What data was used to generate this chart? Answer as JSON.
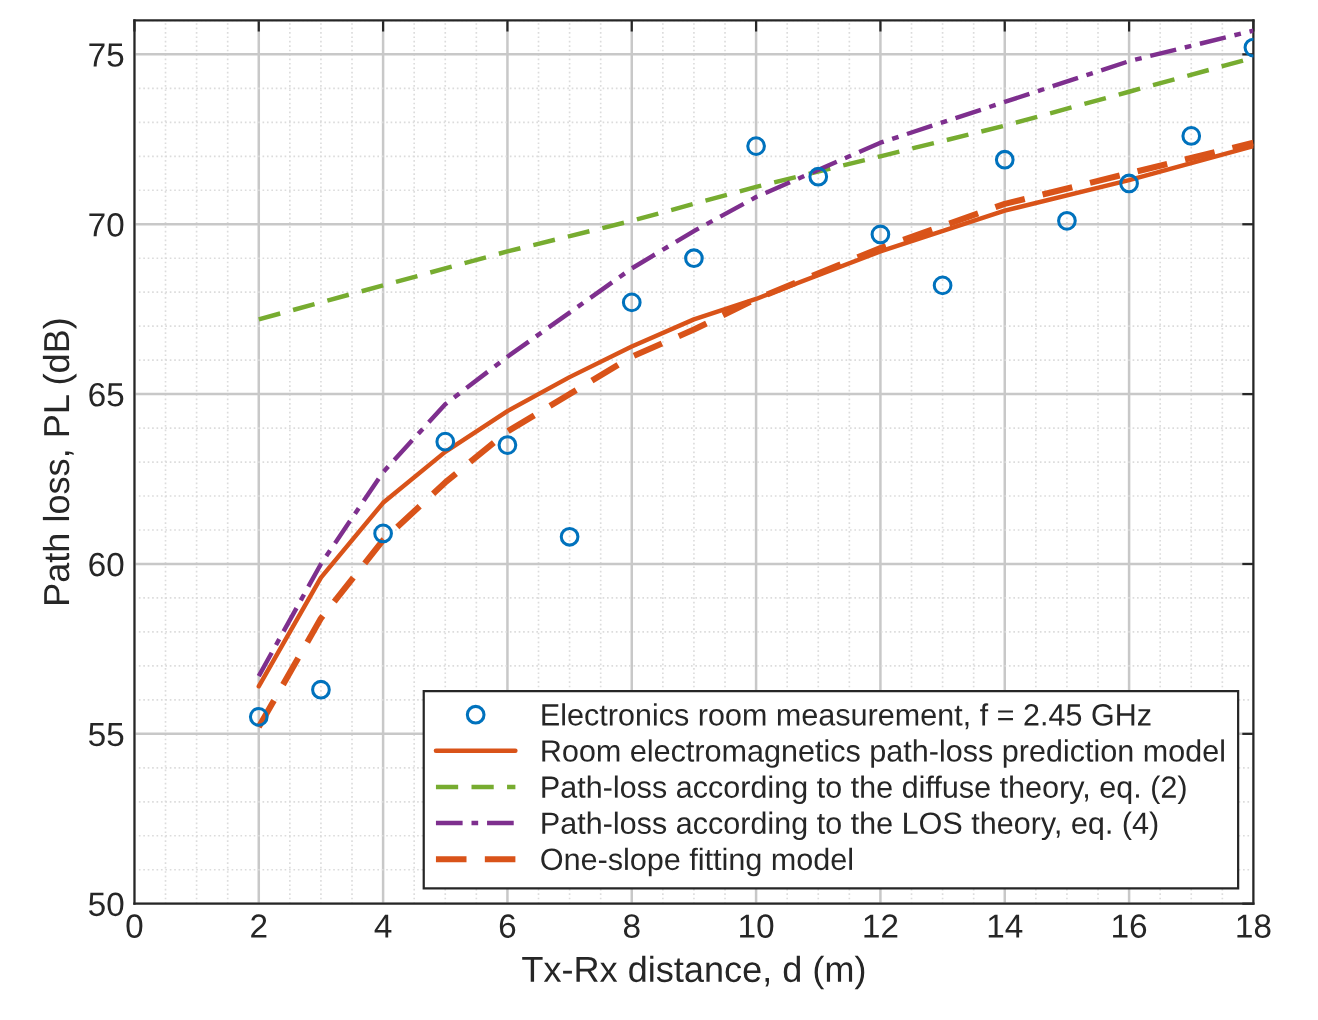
{
  "chart_data": {
    "type": "line",
    "xlabel": "Tx-Rx distance, d (m)",
    "ylabel": "Path loss, PL (dB)",
    "xlim": [
      0,
      18
    ],
    "xticks": [
      0,
      2,
      4,
      6,
      8,
      10,
      12,
      14,
      16,
      18
    ],
    "ylim": [
      50,
      76
    ],
    "yticks": [
      50,
      55,
      60,
      65,
      70,
      75
    ],
    "grid": true,
    "legend": "bottom right",
    "series": [
      {
        "name": "Electronics room measurement, f = 2.45 GHz",
        "type": "scatter",
        "marker": "circle",
        "color": "#0072bd",
        "x": [
          2,
          3,
          4,
          5,
          6,
          7,
          8,
          9,
          10,
          11,
          12,
          13,
          14,
          15,
          16,
          17,
          18
        ],
        "values": [
          55.5,
          56.3,
          60.9,
          63.6,
          63.5,
          60.8,
          67.7,
          69.0,
          72.3,
          71.4,
          69.7,
          68.2,
          71.9,
          70.1,
          71.2,
          72.6,
          75.2
        ]
      },
      {
        "name": "Room electromagnetics path-loss prediction model",
        "line_style": "solid",
        "color": "#d95319",
        "x": [
          2,
          3,
          4,
          5,
          6,
          7,
          8,
          9,
          10,
          12,
          14,
          16,
          18
        ],
        "values": [
          56.4,
          59.6,
          61.8,
          63.3,
          64.5,
          65.5,
          66.4,
          67.2,
          67.8,
          69.2,
          70.4,
          71.3,
          72.3
        ]
      },
      {
        "name": "Path-loss according to the diffuse theory, eq. (2)",
        "line_style": "dashed",
        "color": "#77ac30",
        "x": [
          2,
          4,
          6,
          8,
          10,
          12,
          14,
          16,
          18
        ],
        "values": [
          67.2,
          68.2,
          69.2,
          70.1,
          71.1,
          72.0,
          72.9,
          73.9,
          74.9
        ]
      },
      {
        "name": "Path-loss according to the LOS theory, eq. (4)",
        "line_style": "dashdot",
        "color": "#7e2f8e",
        "x": [
          2,
          3,
          4,
          5,
          6,
          7,
          8,
          9,
          10,
          12,
          14,
          16,
          18
        ],
        "values": [
          56.7,
          60.0,
          62.7,
          64.7,
          66.1,
          67.4,
          68.7,
          69.8,
          70.8,
          72.4,
          73.6,
          74.8,
          75.7
        ]
      },
      {
        "name": "One-slope fitting model",
        "line_style": "dashed",
        "color": "#d95319",
        "x": [
          2,
          3,
          4,
          5,
          6,
          7,
          8,
          9,
          10,
          12,
          14,
          16,
          18
        ],
        "values": [
          55.2,
          58.4,
          60.7,
          62.4,
          63.9,
          65.0,
          66.1,
          66.9,
          67.8,
          69.3,
          70.6,
          71.5,
          72.4
        ]
      }
    ]
  }
}
